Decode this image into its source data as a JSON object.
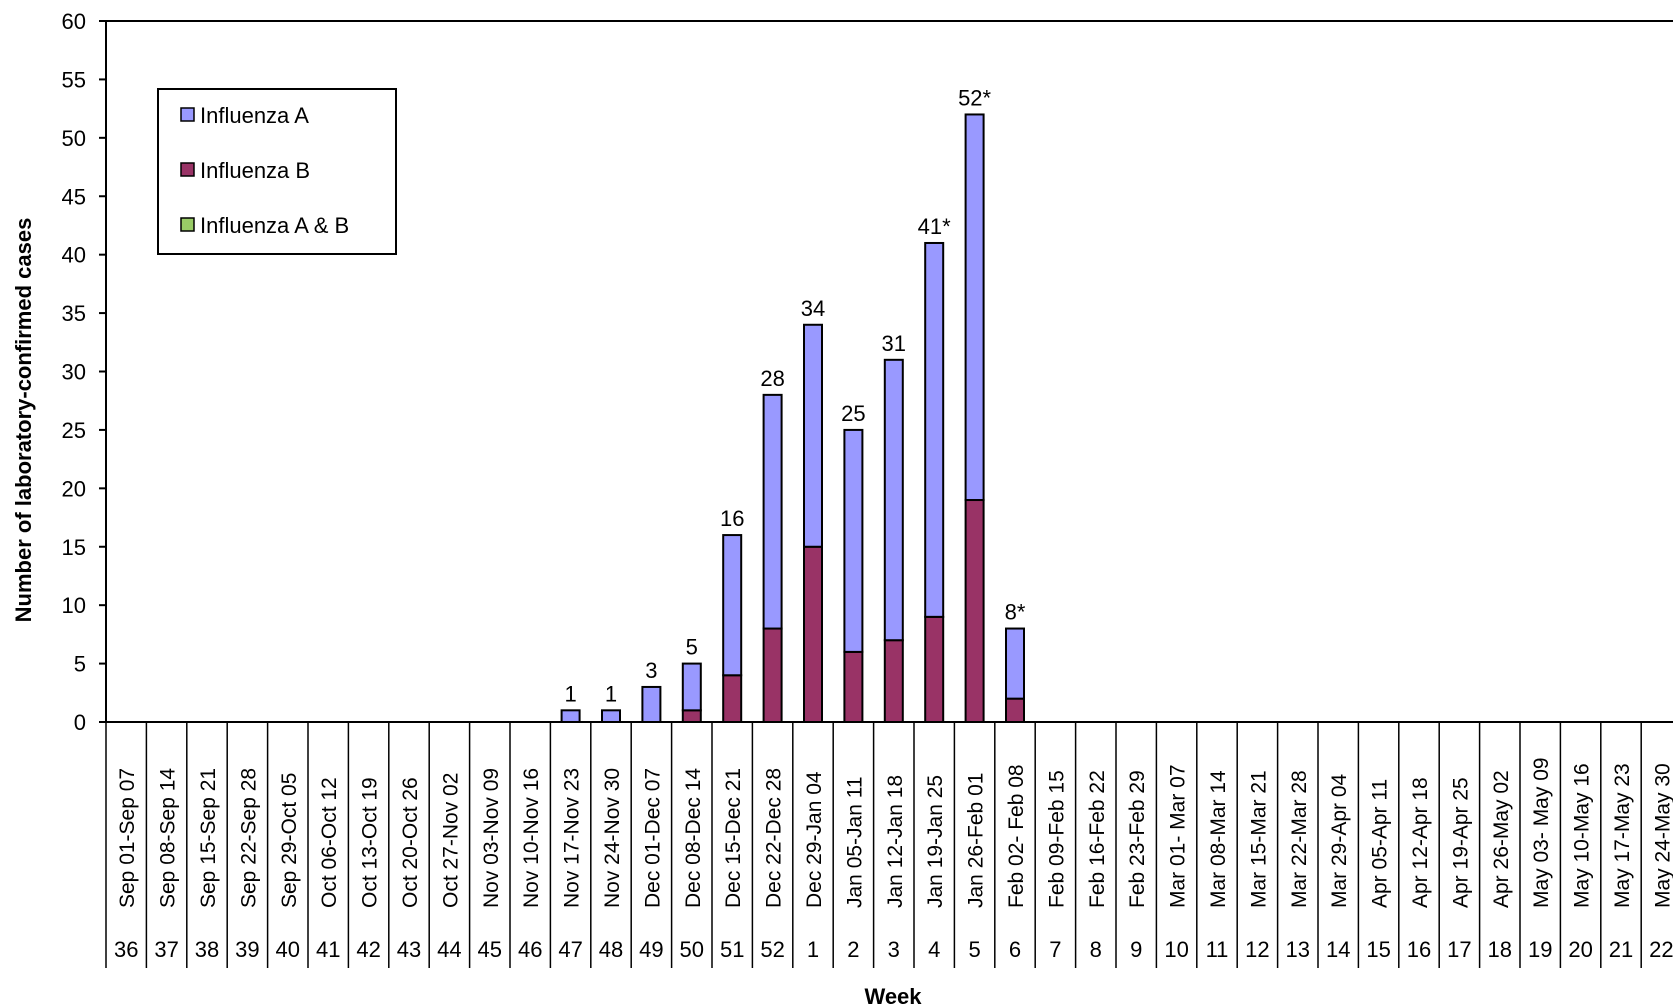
{
  "chart_data": {
    "type": "bar",
    "stacked": true,
    "title": "",
    "xlabel": "Week",
    "ylabel": "Number of laboratory-confirmed cases",
    "ylim": [
      0,
      60
    ],
    "yticks": [
      0,
      5,
      10,
      15,
      20,
      25,
      30,
      35,
      40,
      45,
      50,
      55,
      60
    ],
    "grid": false,
    "legend_position": "top-left",
    "categories": [
      "Sep 01-Sep 07",
      "Sep 08-Sep 14",
      "Sep 15-Sep 21",
      "Sep 22-Sep 28",
      "Sep 29-Oct 05",
      "Oct 06-Oct 12",
      "Oct 13-Oct 19",
      "Oct 20-Oct 26",
      "Oct 27-Nov 02",
      "Nov 03-Nov 09",
      "Nov 10-Nov 16",
      "Nov 17-Nov 23",
      "Nov 24-Nov 30",
      "Dec 01-Dec 07",
      "Dec 08-Dec 14",
      "Dec 15-Dec 21",
      "Dec 22-Dec 28",
      "Dec 29-Jan 04",
      "Jan 05-Jan 11",
      "Jan 12-Jan 18",
      "Jan 19-Jan 25",
      "Jan 26-Feb 01",
      "Feb 02- Feb 08",
      "Feb 09-Feb 15",
      "Feb 16-Feb 22",
      "Feb 23-Feb 29",
      "Mar 01- Mar 07",
      "Mar 08-Mar 14",
      "Mar 15-Mar 21",
      "Mar 22-Mar 28",
      "Mar 29-Apr 04",
      "Apr 05-Apr 11",
      "Apr 12-Apr 18",
      "Apr 19-Apr 25",
      "Apr 26-May 02",
      "May 03- May 09",
      "May 10-May 16",
      "May 17-May 23",
      "May 24-May 30"
    ],
    "weeks": [
      "36",
      "37",
      "38",
      "39",
      "40",
      "41",
      "42",
      "43",
      "44",
      "45",
      "46",
      "47",
      "48",
      "49",
      "50",
      "51",
      "52",
      "1",
      "2",
      "3",
      "4",
      "5",
      "6",
      "7",
      "8",
      "9",
      "10",
      "11",
      "12",
      "13",
      "14",
      "15",
      "16",
      "17",
      "18",
      "19",
      "20",
      "21",
      "22"
    ],
    "series": [
      {
        "name": "Influenza A",
        "color": "#9999ff",
        "values": [
          0,
          0,
          0,
          0,
          0,
          0,
          0,
          0,
          0,
          0,
          0,
          1,
          1,
          3,
          4,
          12,
          20,
          19,
          19,
          24,
          32,
          33,
          6,
          0,
          0,
          0,
          0,
          0,
          0,
          0,
          0,
          0,
          0,
          0,
          0,
          0,
          0,
          0,
          0
        ]
      },
      {
        "name": "Influenza B",
        "color": "#993366",
        "values": [
          0,
          0,
          0,
          0,
          0,
          0,
          0,
          0,
          0,
          0,
          0,
          0,
          0,
          0,
          1,
          4,
          8,
          15,
          6,
          7,
          9,
          19,
          2,
          0,
          0,
          0,
          0,
          0,
          0,
          0,
          0,
          0,
          0,
          0,
          0,
          0,
          0,
          0,
          0
        ]
      },
      {
        "name": "Influenza A & B",
        "color": "#99cc66",
        "values": [
          0,
          0,
          0,
          0,
          0,
          0,
          0,
          0,
          0,
          0,
          0,
          0,
          0,
          0,
          0,
          0,
          0,
          0,
          0,
          0,
          0,
          0,
          0,
          0,
          0,
          0,
          0,
          0,
          0,
          0,
          0,
          0,
          0,
          0,
          0,
          0,
          0,
          0,
          0
        ]
      }
    ],
    "total_labels": [
      "",
      "",
      "",
      "",
      "",
      "",
      "",
      "",
      "",
      "",
      "",
      "1",
      "1",
      "3",
      "5",
      "16",
      "28",
      "34",
      "25",
      "31",
      "41*",
      "52*",
      "8*",
      "",
      "",
      "",
      "",
      "",
      "",
      "",
      "",
      "",
      "",
      "",
      "",
      "",
      "",
      "",
      ""
    ]
  }
}
